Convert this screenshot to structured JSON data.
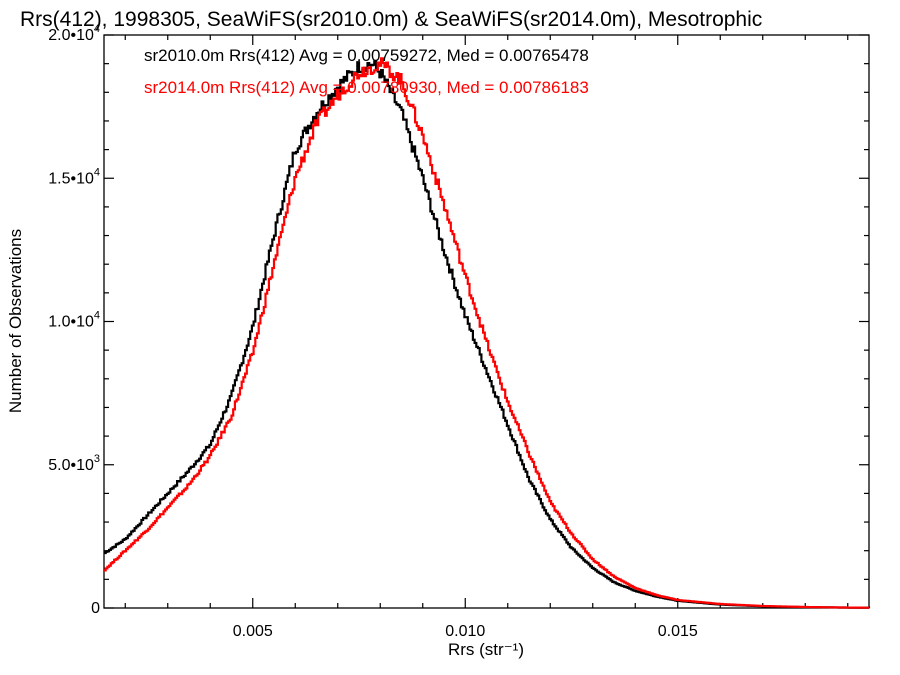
{
  "chart_data": {
    "type": "line",
    "title": "Rrs(412), 1998305, SeaWiFS(sr2010.0m) & SeaWiFS(sr2014.0m), Mesotrophic",
    "xlabel": "Rrs (str⁻¹)",
    "ylabel": "Number of Observations",
    "xlim": [
      0.0015,
      0.0195
    ],
    "ylim": [
      0,
      20000
    ],
    "x_ticks": [
      {
        "value": 0.005,
        "label": "0.005"
      },
      {
        "value": 0.01,
        "label": "0.010"
      },
      {
        "value": 0.015,
        "label": "0.015"
      }
    ],
    "y_ticks": [
      {
        "value": 0,
        "label": "0",
        "exp": ""
      },
      {
        "value": 5000,
        "label": "5.0•10",
        "exp": "3"
      },
      {
        "value": 10000,
        "label": "1.0•10",
        "exp": "4"
      },
      {
        "value": 15000,
        "label": "1.5•10",
        "exp": "4"
      },
      {
        "value": 20000,
        "label": "2.0•10",
        "exp": "4"
      }
    ],
    "grid": false,
    "legend_position": "top-center",
    "series": [
      {
        "name": "sr2010.0m",
        "legend": "sr2010.0m Rrs(412) Avg = 0.00759272, Med = 0.00765478",
        "color": "#000000",
        "x": [
          0.0015,
          0.002,
          0.0025,
          0.003,
          0.0035,
          0.004,
          0.0045,
          0.005,
          0.0055,
          0.006,
          0.0065,
          0.007,
          0.0075,
          0.0078,
          0.008,
          0.0085,
          0.009,
          0.0095,
          0.01,
          0.0105,
          0.011,
          0.0115,
          0.012,
          0.0125,
          0.013,
          0.0135,
          0.014,
          0.0145,
          0.015,
          0.016,
          0.017,
          0.018,
          0.019,
          0.0195
        ],
        "y": [
          1900,
          2400,
          3200,
          4000,
          4800,
          5700,
          7400,
          9800,
          13000,
          16000,
          17300,
          18200,
          18900,
          19000,
          18700,
          17300,
          15000,
          12500,
          10200,
          8300,
          6400,
          4500,
          3100,
          2100,
          1400,
          900,
          600,
          400,
          250,
          120,
          60,
          30,
          15,
          10
        ]
      },
      {
        "name": "sr2014.0m",
        "legend": "sr2014.0m Rrs(412) Avg = 0.00780930, Med = 0.00786183",
        "color": "#ff0000",
        "x": [
          0.0015,
          0.002,
          0.0025,
          0.003,
          0.0035,
          0.004,
          0.0045,
          0.005,
          0.0055,
          0.006,
          0.0065,
          0.007,
          0.0075,
          0.008,
          0.0082,
          0.0085,
          0.009,
          0.0095,
          0.01,
          0.0105,
          0.011,
          0.0115,
          0.012,
          0.0125,
          0.013,
          0.0135,
          0.014,
          0.0145,
          0.015,
          0.016,
          0.017,
          0.018,
          0.019,
          0.0195
        ],
        "y": [
          1300,
          2000,
          2700,
          3500,
          4300,
          5300,
          6700,
          8900,
          12000,
          15000,
          16900,
          17900,
          18700,
          19000,
          18800,
          18400,
          16500,
          14100,
          11600,
          9300,
          7200,
          5400,
          3700,
          2600,
          1700,
          1100,
          700,
          450,
          280,
          140,
          70,
          35,
          15,
          10
        ]
      }
    ]
  }
}
